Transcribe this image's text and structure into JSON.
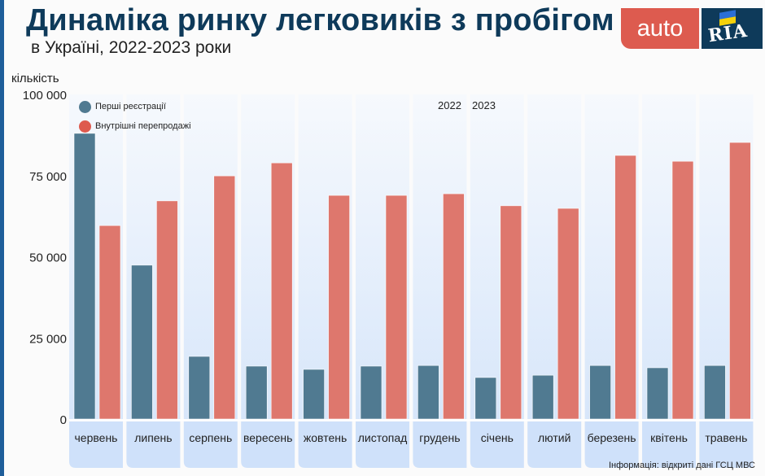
{
  "header": {
    "title": "Динаміка ринку легковиків з пробігом",
    "subtitle": "в Україні, 2022-2023 роки"
  },
  "logo": {
    "auto_text": "auto",
    "ria_text": "RIA"
  },
  "source": "Інформація: відкриті дані ГСЦ МВС",
  "colors": {
    "first_registrations": "#507a91",
    "internal_resales": "#de776d",
    "title": "#0e3a5a",
    "brand_red": "#dd5b4f",
    "brand_navy": "#0e3a5a"
  },
  "year_markers": [
    "2022",
    "2023"
  ],
  "chart_data": {
    "type": "bar",
    "title": "Динаміка ринку легковиків з пробігом",
    "subtitle": "в Україні, 2022-2023 роки",
    "xlabel": "",
    "ylabel": "кількість",
    "ylim": [
      0,
      100000
    ],
    "yticks": [
      0,
      25000,
      50000,
      75000,
      100000
    ],
    "ytick_labels": [
      "0",
      "25 000",
      "50 000",
      "75 000",
      "100 000"
    ],
    "grid": false,
    "legend_position": "top-left",
    "categories": [
      "червень",
      "липень",
      "серпень",
      "вересень",
      "жовтень",
      "листопад",
      "грудень",
      "січень",
      "лютий",
      "березень",
      "квітень",
      "травень"
    ],
    "series": [
      {
        "name": "Перші реєстрації",
        "values": [
          88000,
          47400,
          19300,
          16300,
          15300,
          16300,
          16500,
          12800,
          13500,
          16500,
          15800,
          16500
        ]
      },
      {
        "name": "Внутрішні перепродажі",
        "values": [
          59600,
          67200,
          74900,
          78900,
          68900,
          68900,
          69400,
          65700,
          64900,
          81200,
          79400,
          85200
        ]
      }
    ],
    "annotations": [
      "2022",
      "2023"
    ]
  }
}
